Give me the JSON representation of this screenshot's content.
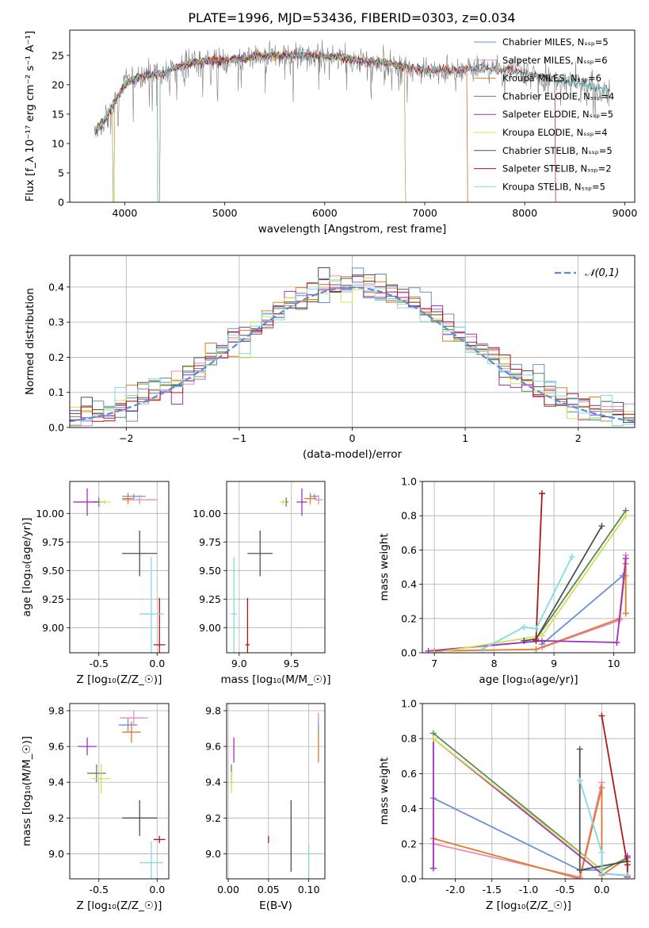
{
  "title": "PLATE=1996, MJD=53436, FIBERID=0303, z=0.034",
  "colors": {
    "Chabrier MILES": "#6b8fd6",
    "Salpeter MILES": "#e88bc0",
    "Kroupa MILES": "#e07b28",
    "Chabrier ELODIE": "#5a8a5a",
    "Salpeter ELODIE": "#a030c0",
    "Kroupa ELODIE": "#d4e050",
    "Chabrier STELIB": "#505050",
    "Salpeter STELIB": "#b01818",
    "Kroupa STELIB": "#80dce0",
    "gauss": "#5b8bd6",
    "data": "#808080"
  },
  "chart_data": [
    {
      "id": "spectrum",
      "type": "line",
      "xlabel": "wavelength [Angstrom, rest frame]",
      "ylabel": "Flux [f_λ 10⁻¹⁷ erg cm⁻² s⁻¹ A⁻¹]",
      "xlim": [
        3450,
        9100
      ],
      "ylim": [
        0,
        29.3
      ],
      "xticks": [
        4000,
        5000,
        6000,
        7000,
        8000,
        9000
      ],
      "yticks": [
        0,
        5,
        10,
        15,
        20,
        25
      ],
      "legend": [
        "Chabrier MILES, N_SSP=5",
        "Salpeter MILES, N_SSP=6",
        "Kroupa MILES, N_SSP=6",
        "Chabrier ELODIE, N_SSP=4",
        "Salpeter ELODIE, N_SSP=5",
        "Kroupa ELODIE, N_SSP=4",
        "Chabrier STELIB, N_SSP=5",
        "Salpeter STELIB, N_SSP=2",
        "Kroupa STELIB, N_SSP=5"
      ],
      "legend_position": "right",
      "continuum": [
        [
          3700,
          12
        ],
        [
          3800,
          14
        ],
        [
          3900,
          17
        ],
        [
          4000,
          20
        ],
        [
          4100,
          21
        ],
        [
          4200,
          21.5
        ],
        [
          4400,
          22
        ],
        [
          4600,
          23.5
        ],
        [
          4800,
          24
        ],
        [
          5000,
          24.2
        ],
        [
          5200,
          24.5
        ],
        [
          5400,
          25
        ],
        [
          5600,
          25
        ],
        [
          5800,
          25
        ],
        [
          6000,
          24.8
        ],
        [
          6200,
          24.5
        ],
        [
          6400,
          24
        ],
        [
          6600,
          23.8
        ],
        [
          6800,
          23
        ],
        [
          7000,
          22.5
        ],
        [
          7200,
          22.5
        ],
        [
          7400,
          22.5
        ],
        [
          7600,
          23
        ],
        [
          8000,
          22
        ],
        [
          8300,
          21
        ],
        [
          8600,
          20
        ],
        [
          8850,
          19
        ]
      ]
    },
    {
      "id": "residuals",
      "type": "line",
      "xlabel": "(data-model)/error",
      "ylabel": "Normed distribution",
      "xlim": [
        -2.5,
        2.5
      ],
      "ylim": [
        0,
        0.49
      ],
      "xticks": [
        -2,
        -1,
        0,
        1,
        2
      ],
      "yticks": [
        0.0,
        0.1,
        0.2,
        0.3,
        0.4
      ],
      "grid": true,
      "legend": [
        "𝒩(0,1)"
      ],
      "legend_position": "top-right"
    },
    {
      "id": "age_vs_Z",
      "type": "scatter",
      "xlabel": "Z [log₁₀(Z/Z_☉)]",
      "ylabel": "age  [log₁₀(age/yr)]",
      "xlim": [
        -0.75,
        0.1
      ],
      "ylim": [
        8.78,
        10.28
      ],
      "xticks": [
        -0.5,
        0.0
      ],
      "yticks": [
        9.0,
        9.25,
        9.5,
        9.75,
        10.0
      ],
      "grid": true,
      "points": [
        {
          "m": "Chabrier MILES",
          "x": -0.2,
          "y": 10.15,
          "xe": 0.1,
          "ye": 0.02
        },
        {
          "m": "Salpeter MILES",
          "x": -0.15,
          "y": 10.12,
          "xe": 0.15,
          "ye": 0.04
        },
        {
          "m": "Kroupa MILES",
          "x": -0.25,
          "y": 10.13,
          "xe": 0.05,
          "ye": 0.05
        },
        {
          "m": "Chabrier ELODIE",
          "x": -0.5,
          "y": 10.1,
          "xe": 0.05,
          "ye": 0.04
        },
        {
          "m": "Salpeter ELODIE",
          "x": -0.6,
          "y": 10.1,
          "xe": 0.12,
          "ye": 0.12
        },
        {
          "m": "Kroupa ELODIE",
          "x": -0.45,
          "y": 10.1,
          "xe": 0.05,
          "ye": 0.02
        },
        {
          "m": "Chabrier STELIB",
          "x": -0.15,
          "y": 9.65,
          "xe": 0.15,
          "ye": 0.2
        },
        {
          "m": "Salpeter STELIB",
          "x": 0.02,
          "y": 8.85,
          "xe": 0.05,
          "ye": 0.41
        },
        {
          "m": "Kroupa STELIB",
          "x": -0.05,
          "y": 9.12,
          "xe": 0.1,
          "ye": 0.5
        }
      ]
    },
    {
      "id": "age_vs_mass",
      "type": "scatter",
      "xlabel": "mass [log₁₀(M/M_☉)]",
      "ylabel": "",
      "xlim": [
        8.88,
        9.82
      ],
      "ylim": [
        8.78,
        10.28
      ],
      "xticks": [
        9.0,
        9.5
      ],
      "yticks": [
        9.0,
        9.25,
        9.5,
        9.75,
        10.0
      ],
      "grid": true,
      "points": [
        {
          "m": "Chabrier MILES",
          "x": 9.72,
          "y": 10.15,
          "xe": 0.04,
          "ye": 0.02
        },
        {
          "m": "Salpeter MILES",
          "x": 9.76,
          "y": 10.12,
          "xe": 0.04,
          "ye": 0.04
        },
        {
          "m": "Kroupa MILES",
          "x": 9.68,
          "y": 10.13,
          "xe": 0.06,
          "ye": 0.05
        },
        {
          "m": "Chabrier ELODIE",
          "x": 9.45,
          "y": 10.1,
          "xe": 0.02,
          "ye": 0.04
        },
        {
          "m": "Salpeter ELODIE",
          "x": 9.6,
          "y": 10.1,
          "xe": 0.05,
          "ye": 0.12
        },
        {
          "m": "Kroupa ELODIE",
          "x": 9.42,
          "y": 10.1,
          "xe": 0.03,
          "ye": 0.02
        },
        {
          "m": "Chabrier STELIB",
          "x": 9.2,
          "y": 9.65,
          "xe": 0.12,
          "ye": 0.2
        },
        {
          "m": "Salpeter STELIB",
          "x": 9.08,
          "y": 8.85,
          "xe": 0.02,
          "ye": 0.41
        },
        {
          "m": "Kroupa STELIB",
          "x": 8.95,
          "y": 9.12,
          "xe": 0.03,
          "ye": 0.5
        }
      ]
    },
    {
      "id": "mass_vs_Z",
      "type": "scatter",
      "xlabel": "Z [log₁₀(Z/Z_☉)]",
      "ylabel": "mass [log₁₀(M/M_☉)]",
      "xlim": [
        -0.75,
        0.1
      ],
      "ylim": [
        8.86,
        9.84
      ],
      "xticks": [
        -0.5,
        0.0
      ],
      "yticks": [
        9.0,
        9.2,
        9.4,
        9.6,
        9.8
      ],
      "grid": true,
      "points": [
        {
          "m": "Chabrier MILES",
          "x": -0.25,
          "y": 9.72,
          "xe": 0.08,
          "ye": 0.04
        },
        {
          "m": "Salpeter MILES",
          "x": -0.2,
          "y": 9.76,
          "xe": 0.12,
          "ye": 0.04
        },
        {
          "m": "Kroupa MILES",
          "x": -0.22,
          "y": 9.68,
          "xe": 0.08,
          "ye": 0.06
        },
        {
          "m": "Chabrier ELODIE",
          "x": -0.52,
          "y": 9.45,
          "xe": 0.08,
          "ye": 0.05
        },
        {
          "m": "Salpeter ELODIE",
          "x": -0.6,
          "y": 9.6,
          "xe": 0.08,
          "ye": 0.05
        },
        {
          "m": "Kroupa ELODIE",
          "x": -0.48,
          "y": 9.42,
          "xe": 0.08,
          "ye": 0.08
        },
        {
          "m": "Chabrier STELIB",
          "x": -0.15,
          "y": 9.2,
          "xe": 0.15,
          "ye": 0.1
        },
        {
          "m": "Salpeter STELIB",
          "x": 0.02,
          "y": 9.08,
          "xe": 0.05,
          "ye": 0.02
        },
        {
          "m": "Kroupa STELIB",
          "x": -0.05,
          "y": 8.95,
          "xe": 0.1,
          "ye": 0.12
        }
      ]
    },
    {
      "id": "mass_vs_EBV",
      "type": "scatter",
      "xlabel": "E(B-V)",
      "ylabel": "",
      "xlim": [
        -0.002,
        0.12
      ],
      "ylim": [
        8.86,
        9.84
      ],
      "xticks": [
        0.0,
        0.05,
        0.1
      ],
      "yticks": [
        9.0,
        9.2,
        9.4,
        9.6,
        9.8
      ],
      "grid": true,
      "points": [
        {
          "m": "Chabrier MILES",
          "x": 0.112,
          "y": 9.72,
          "ye": 0.04
        },
        {
          "m": "Salpeter MILES",
          "x": 0.112,
          "y": 9.76,
          "ye": 0.03
        },
        {
          "m": "Kroupa MILES",
          "x": 0.112,
          "y": 9.6,
          "ye": 0.09
        },
        {
          "m": "Chabrier ELODIE",
          "x": 0.004,
          "y": 9.45,
          "ye": 0.05
        },
        {
          "m": "Salpeter ELODIE",
          "x": 0.007,
          "y": 9.58,
          "ye": 0.07
        },
        {
          "m": "Kroupa ELODIE",
          "x": 0.004,
          "y": 9.4,
          "ye": 0.06
        },
        {
          "m": "Chabrier STELIB",
          "x": 0.078,
          "y": 9.1,
          "ye": 0.2
        },
        {
          "m": "Salpeter STELIB",
          "x": 0.05,
          "y": 9.08,
          "ye": 0.02
        },
        {
          "m": "Kroupa STELIB",
          "x": 0.1,
          "y": 8.95,
          "ye": 0.1
        }
      ]
    },
    {
      "id": "weight_vs_age",
      "type": "line",
      "xlabel": "age  [log₁₀(age/yr)]",
      "ylabel": "mass weight",
      "xlim": [
        6.8,
        10.35
      ],
      "ylim": [
        0,
        1.0
      ],
      "xticks": [
        7,
        8,
        9,
        10
      ],
      "yticks": [
        0.0,
        0.2,
        0.4,
        0.6,
        0.8,
        1.0
      ],
      "grid": true,
      "series": [
        {
          "m": "Chabrier MILES",
          "x": [
            8.8,
            10.15
          ],
          "y": [
            0.05,
            0.45
          ]
        },
        {
          "m": "Salpeter MILES",
          "x": [
            8.8,
            10.1,
            10.2,
            10.2
          ],
          "y": [
            0.03,
            0.19,
            0.57,
            0.45
          ]
        },
        {
          "m": "Kroupa MILES",
          "x": [
            7.0,
            8.7,
            10.1,
            10.2,
            10.2
          ],
          "y": [
            0.01,
            0.02,
            0.2,
            0.52,
            0.23
          ]
        },
        {
          "m": "Chabrier ELODIE",
          "x": [
            8.7,
            10.2
          ],
          "y": [
            0.08,
            0.83
          ]
        },
        {
          "m": "Salpeter ELODIE",
          "x": [
            6.9,
            8.8,
            10.05,
            10.2
          ],
          "y": [
            0.01,
            0.07,
            0.06,
            0.55
          ]
        },
        {
          "m": "Kroupa ELODIE",
          "x": [
            7.0,
            8.8,
            10.2
          ],
          "y": [
            0.0,
            0.1,
            0.8
          ]
        },
        {
          "m": "Chabrier STELIB",
          "x": [
            8.5,
            8.7,
            9.8
          ],
          "y": [
            0.07,
            0.08,
            0.74
          ]
        },
        {
          "m": "Salpeter STELIB",
          "x": [
            8.7,
            8.8
          ],
          "y": [
            0.07,
            0.93
          ]
        },
        {
          "m": "Kroupa STELIB",
          "x": [
            7.8,
            8.5,
            8.7,
            9.3
          ],
          "y": [
            0.02,
            0.15,
            0.14,
            0.56
          ]
        }
      ]
    },
    {
      "id": "weight_vs_Z",
      "type": "line",
      "xlabel": "Z [log₁₀(Z/Z_☉)]",
      "ylabel": "mass weight",
      "xlim": [
        -2.45,
        0.45
      ],
      "ylim": [
        0,
        1.0
      ],
      "xticks": [
        -2.0,
        -1.5,
        -1.0,
        -0.5,
        0.0
      ],
      "yticks": [
        0.0,
        0.2,
        0.4,
        0.6,
        0.8,
        1.0
      ],
      "grid": true,
      "series": [
        {
          "m": "Chabrier MILES",
          "x": [
            -2.3,
            -0.3,
            0.0,
            0.35
          ],
          "y": [
            0.46,
            0.05,
            0.05,
            0.12
          ]
        },
        {
          "m": "Salpeter MILES",
          "x": [
            -2.3,
            -0.3,
            0.0,
            0.0,
            0.35
          ],
          "y": [
            0.2,
            0.01,
            0.55,
            0.03,
            0.02
          ]
        },
        {
          "m": "Kroupa MILES",
          "x": [
            -2.3,
            -0.3,
            0.0,
            0.0,
            0.35
          ],
          "y": [
            0.23,
            0.0,
            0.52,
            0.02,
            0.12
          ]
        },
        {
          "m": "Chabrier ELODIE",
          "x": [
            -2.3,
            0.0,
            0.35
          ],
          "y": [
            0.83,
            0.05,
            0.12
          ]
        },
        {
          "m": "Salpeter ELODIE",
          "x": [
            -2.3,
            -2.3,
            0.0,
            0.35,
            0.35
          ],
          "y": [
            0.06,
            0.8,
            0.03,
            0.02,
            0.13
          ]
        },
        {
          "m": "Kroupa ELODIE",
          "x": [
            -2.3,
            0.0
          ],
          "y": [
            0.8,
            0.05
          ]
        },
        {
          "m": "Chabrier STELIB",
          "x": [
            -0.3,
            -0.3,
            0.35
          ],
          "y": [
            0.74,
            0.05,
            0.1
          ]
        },
        {
          "m": "Salpeter STELIB",
          "x": [
            0.0,
            0.35,
            0.35
          ],
          "y": [
            0.93,
            0.08,
            0.01
          ]
        },
        {
          "m": "Kroupa STELIB",
          "x": [
            -0.3,
            0.0,
            0.0,
            0.35
          ],
          "y": [
            0.56,
            0.15,
            0.03,
            0.02
          ]
        }
      ]
    }
  ]
}
